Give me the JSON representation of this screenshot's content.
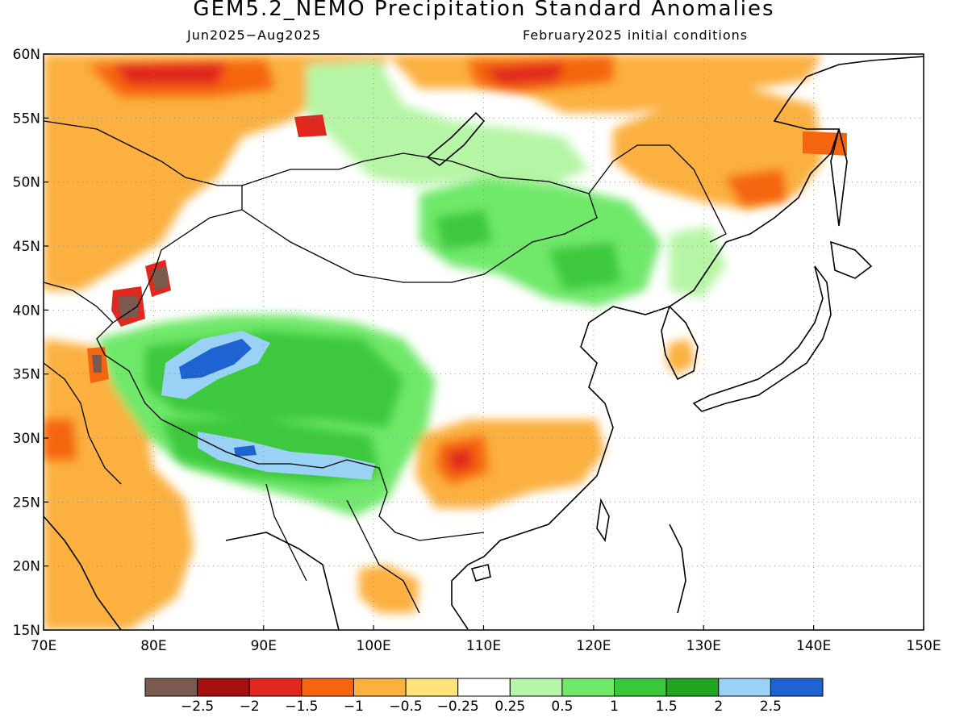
{
  "title": "GEM5.2_NEMO Precipitation Standard Anomalies",
  "subtitle_left": "Jun2025−Aug2025",
  "subtitle_right": "February2025 initial conditions",
  "map": {
    "lon_range": [
      70,
      150
    ],
    "lat_range": [
      15,
      60
    ],
    "lon_ticks": [
      "70E",
      "80E",
      "90E",
      "100E",
      "110E",
      "120E",
      "130E",
      "140E",
      "150E"
    ],
    "lat_ticks": [
      "15N",
      "20N",
      "25N",
      "30N",
      "35N",
      "40N",
      "45N",
      "50N",
      "55N",
      "60N"
    ],
    "gridlines": "dotted",
    "coastlines": true,
    "borders": true
  },
  "colorbar": {
    "colors": [
      "#7a5a4f",
      "#a50f0f",
      "#e0281e",
      "#f5650f",
      "#fbb040",
      "#fde37a",
      "#ffffff",
      "#b5f5a5",
      "#6fe86a",
      "#3cc83c",
      "#1fa51f",
      "#9ad2f5",
      "#1f63d2"
    ],
    "labels": [
      "−2.5",
      "−2",
      "−1.5",
      "−1",
      "−0.5",
      "−0.25",
      "0.25",
      "0.5",
      "1",
      "1.5",
      "2",
      "2.5"
    ]
  }
}
